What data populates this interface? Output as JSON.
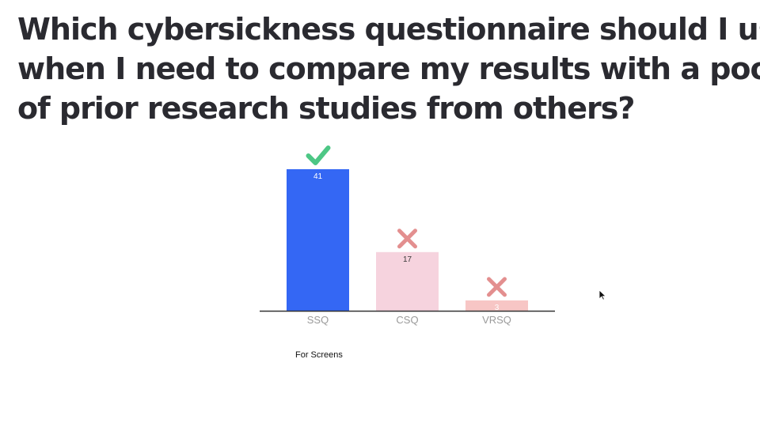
{
  "question": {
    "lines": [
      "Which cybersickness questionnaire should I use",
      "when I need to compare my results with a pool",
      "of prior research studies from others?"
    ]
  },
  "caption": "For Screens",
  "chart_data": {
    "type": "bar",
    "categories": [
      "SSQ",
      "CSQ",
      "VRSQ"
    ],
    "values": [
      41,
      17,
      3
    ],
    "ylim": [
      0,
      41
    ],
    "grid": false,
    "bar_colors": [
      "#3467f4",
      "#f6d3de",
      "#f7c6c5"
    ],
    "value_label_colors": [
      "#ffffff",
      "#3a3a3a",
      "#ffffff"
    ],
    "markers": [
      "check-icon",
      "cross-icon",
      "cross-icon"
    ],
    "marker_colors": {
      "check-icon": "#4dc785",
      "cross-icon": "#e38f8f"
    },
    "axis_color": "#333333",
    "tick_label_color": "#9a9a9a"
  }
}
